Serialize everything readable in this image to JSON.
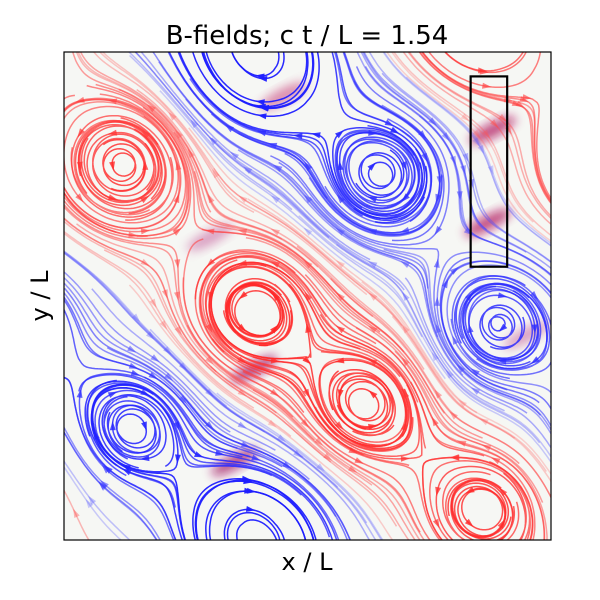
{
  "chart_data": {
    "type": "streamplot",
    "title": "B-fields; c t / L = 1.54",
    "xlabel": "x / L",
    "ylabel": "y / L",
    "xlim": [
      0,
      1
    ],
    "ylim": [
      0,
      1
    ],
    "ticks_shown": false,
    "grid": false,
    "colormap": {
      "positive": "#ff0000",
      "negative": "#0000ff",
      "neutral": "#ffffff"
    },
    "vortices": [
      {
        "x": 0.12,
        "y": 0.77,
        "sign": 1
      },
      {
        "x": 0.65,
        "y": 0.75,
        "sign": -1
      },
      {
        "x": 0.39,
        "y": 0.47,
        "sign": 1
      },
      {
        "x": 0.14,
        "y": 0.23,
        "sign": -1
      },
      {
        "x": 0.62,
        "y": 0.28,
        "sign": 1
      },
      {
        "x": 0.89,
        "y": 0.44,
        "sign": -1
      },
      {
        "x": 0.42,
        "y": 0.97,
        "sign": -1
      },
      {
        "x": 0.37,
        "y": 0.03,
        "sign": -1
      },
      {
        "x": 0.86,
        "y": 0.06,
        "sign": 1
      }
    ],
    "current_sheets": [
      {
        "x": 0.88,
        "y": 0.84,
        "color": "#b0105a"
      },
      {
        "x": 0.87,
        "y": 0.65,
        "color": "#b0105a"
      },
      {
        "x": 0.39,
        "y": 0.35,
        "color": "#a01060"
      },
      {
        "x": 0.35,
        "y": 0.16,
        "color": "#a01060"
      },
      {
        "x": 0.45,
        "y": 0.91,
        "color": "#d06090"
      },
      {
        "x": 0.3,
        "y": 0.62,
        "color": "#d080b0"
      },
      {
        "x": 0.95,
        "y": 0.42,
        "color": "#d080b0"
      }
    ],
    "highlight_box": {
      "x0": 0.835,
      "x1": 0.91,
      "y0": 0.56,
      "y1": 0.95,
      "color": "#000000"
    }
  }
}
